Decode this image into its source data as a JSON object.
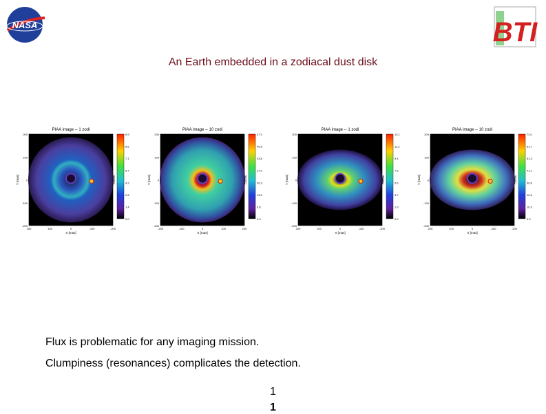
{
  "header": {
    "logo_left": "NASA",
    "logo_right": "BTI",
    "title": "An Earth embedded in a zodiacal dust disk"
  },
  "panels": [
    {
      "title": "PIAA image -- 1 zodi",
      "x_label": "X [mas]",
      "y_label": "Y [mas]",
      "colorbar_label": "Counts",
      "x_ticks": [
        "200",
        "100",
        "0",
        "-100",
        "-200"
      ],
      "y_ticks": [
        "200",
        "100",
        "0",
        "-100",
        "-200"
      ],
      "colorbar_ticks": [
        "9.9",
        "8.5",
        "7.1",
        "5.7",
        "4.2",
        "2.8",
        "1.4",
        "0.0"
      ]
    },
    {
      "title": "PIAA image -- 10 zodi",
      "x_label": "X [mas]",
      "y_label": "Y [mas]",
      "colorbar_label": "Counts",
      "x_ticks": [
        "-200",
        "-100",
        "0",
        "100",
        "200"
      ],
      "y_ticks": [
        "200",
        "100",
        "0",
        "-100",
        "-200"
      ],
      "colorbar_ticks": [
        "47.3",
        "40.6",
        "33.8",
        "27.0",
        "20.3",
        "13.5",
        "6.8",
        "0.0"
      ]
    },
    {
      "title": "PIAA image -- 1 zodi",
      "x_label": "X [mas]",
      "y_label": "Y [mas]",
      "colorbar_label": "Counts",
      "x_ticks": [
        "200",
        "100",
        "0",
        "-100",
        "-200"
      ],
      "y_ticks": [
        "200",
        "100",
        "0",
        "-100",
        "-200"
      ],
      "colorbar_ticks": [
        "13.1",
        "11.2",
        "9.4",
        "7.5",
        "5.6",
        "3.7",
        "1.9",
        "0.0"
      ]
    },
    {
      "title": "PIAA image -- 10 zodi",
      "x_label": "X [mas]",
      "y_label": "Y [mas]",
      "colorbar_label": "Counts",
      "x_ticks": [
        "200",
        "100",
        "0",
        "-100",
        "-200"
      ],
      "y_ticks": [
        "200",
        "100",
        "0",
        "-100",
        "-200"
      ],
      "colorbar_ticks": [
        "72.0",
        "61.7",
        "51.4",
        "41.1",
        "30.8",
        "20.6",
        "10.3",
        "0.0"
      ]
    }
  ],
  "body": {
    "lines": [
      "Flux is problematic for any imaging mission.",
      "Clumpiness (resonances) complicates the detection."
    ]
  },
  "footer": {
    "page_number": "1",
    "page_number_repeat": "1"
  }
}
